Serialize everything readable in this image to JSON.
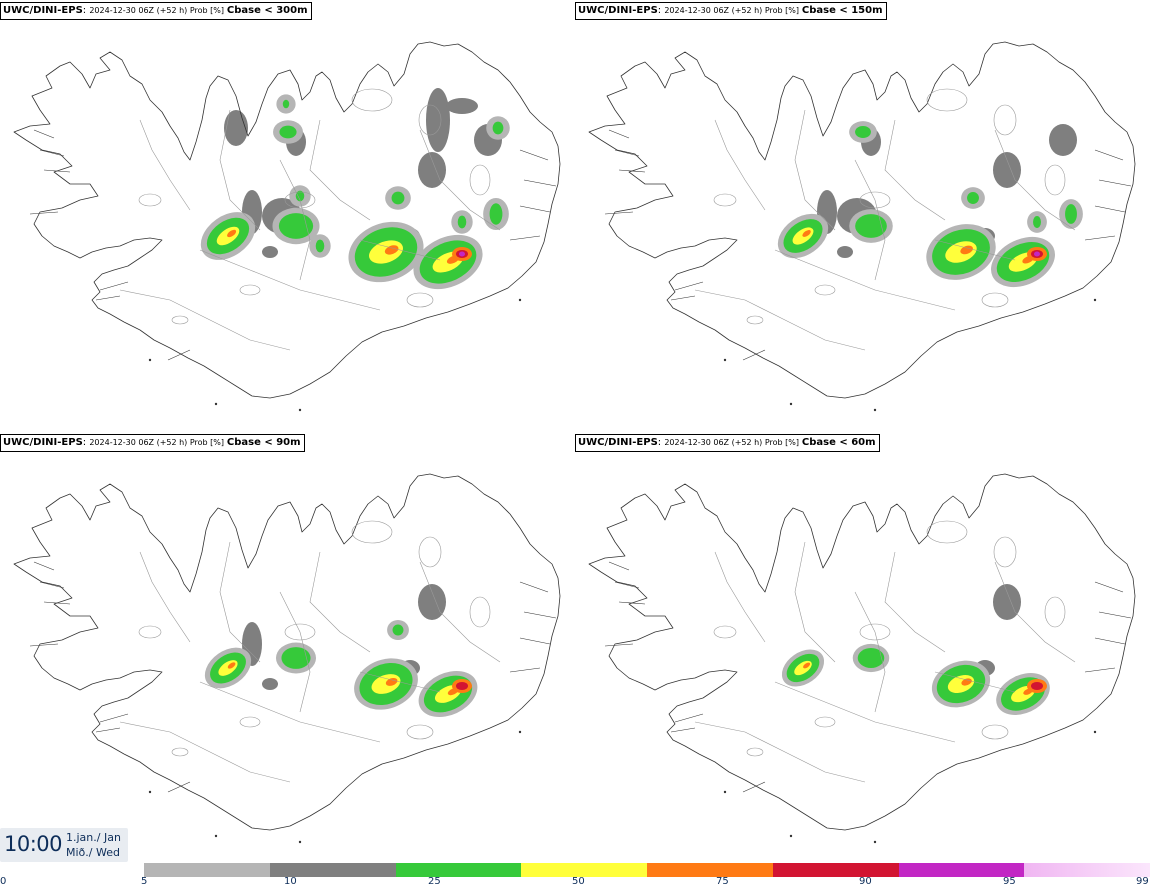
{
  "panels": [
    {
      "model": "UWC/DINI-EPS",
      "run": "2024-12-30 06Z (+52 h) Prob [%]",
      "field": "Cbase < 300m",
      "level": 4
    },
    {
      "model": "UWC/DINI-EPS",
      "run": "2024-12-30 06Z (+52 h) Prob [%]",
      "field": "Cbase < 150m",
      "level": 3
    },
    {
      "model": "UWC/DINI-EPS",
      "run": "2024-12-30 06Z (+52 h) Prob [%]",
      "field": "Cbase < 90m",
      "level": 2
    },
    {
      "model": "UWC/DINI-EPS",
      "run": "2024-12-30 06Z (+52 h) Prob [%]",
      "field": "Cbase < 60m",
      "level": 1
    }
  ],
  "valid_time": {
    "clock": "10:00",
    "date": "1.jan./ Jan",
    "weekday": "Mið./ Wed"
  },
  "legend": {
    "ticks": [
      "0",
      "5",
      "10",
      "25",
      "50",
      "75",
      "90",
      "95",
      "99"
    ],
    "colors": [
      "#b5b5b5",
      "#7f7f7f",
      "#36c93a",
      "#ffff3b",
      "#ff7a14",
      "#d21432",
      "#c227c4",
      "#f0b6f2"
    ]
  }
}
